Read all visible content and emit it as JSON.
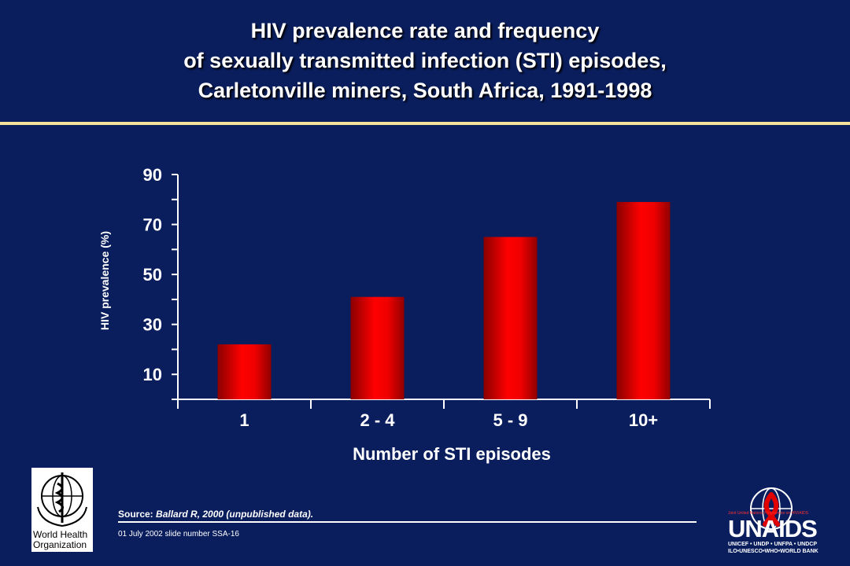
{
  "slide": {
    "title_lines": [
      "HIV prevalence rate and frequency",
      "of sexually transmitted infection (STI) episodes,",
      "Carletonville miners, South Africa, 1991-1998"
    ],
    "source_label": "Source:",
    "source_text": "Ballard R, 2000 (unpublished data).",
    "footer": "01 July 2002 slide number SSA-16",
    "who_logo_text": [
      "World Health",
      "Organization"
    ],
    "unaids_logo_text": "UNAIDS",
    "unaids_subtext": [
      "UNICEF • UNDP • UNFPA • UNDCP",
      "ILO•UNESCO•WHO•WORLD BANK"
    ],
    "unaids_top": "Joint United Nations Programme on HIV/AIDS",
    "colors": {
      "background": "#0a1e5e",
      "rule": "#f3e29a",
      "bar": "#ee0000"
    }
  },
  "chart_data": {
    "type": "bar",
    "categories": [
      "1",
      "2 - 4",
      "5 - 9",
      "10+"
    ],
    "values": [
      22,
      41,
      65,
      79
    ],
    "ylabel": "HIV prevalence (%)",
    "xlabel": "Number of STI episodes",
    "ylim": [
      0,
      90
    ],
    "yticks_labeled": [
      10,
      30,
      50,
      70,
      90
    ],
    "yticks_minor": [
      0,
      20,
      40,
      60,
      80
    ],
    "grid": false,
    "legend": "none"
  }
}
